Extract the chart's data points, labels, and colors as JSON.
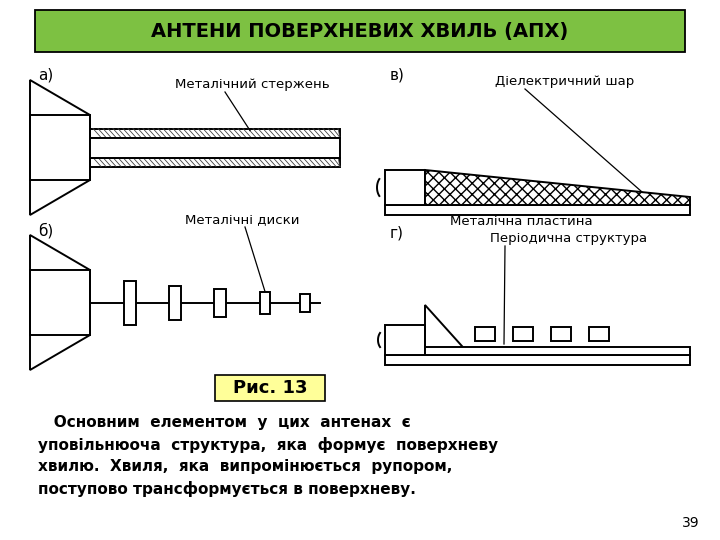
{
  "title": "АНТЕНИ ПОВЕРХНЕВИХ ХВИЛЬ (АПХ)",
  "title_bg": "#7dc142",
  "fig_caption": "Рис. 13",
  "caption_bg": "#ffff99",
  "label_a": "а)",
  "label_b": "б)",
  "label_v": "в)",
  "label_g": "г)",
  "ann_a": "Металічний стержень",
  "ann_b": "Металічні диски",
  "ann_v1": "Діелектричний шар",
  "ann_v2": "Металічна пластина",
  "ann_g": "Періодична структура",
  "page_num": "39",
  "bg_color": "#ffffff",
  "body_lines": [
    "   Основним  елементом  у  цих  антенах  є",
    "уповільнюоча  структура,  яка  формує  поверхневу",
    "хвилю.  Хвиля,  яка  випромінюється  рупором,",
    "поступово трансформується в поверхневу."
  ]
}
